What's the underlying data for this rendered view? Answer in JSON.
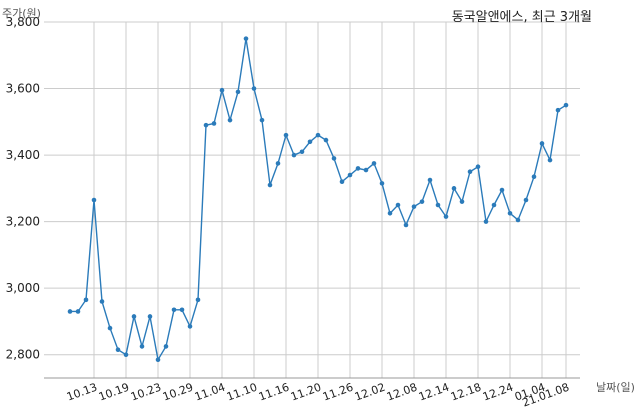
{
  "title": "동국알앤에스, 최근 3개월",
  "ylabel": "주가(원)",
  "xlabel": "날짜(일)",
  "chart_data": {
    "type": "line",
    "title": "동국알앤에스, 최근 3개월",
    "xlabel": "날짜(일)",
    "ylabel": "주가(원)",
    "ylim": [
      2730,
      3800
    ],
    "yticks": [
      2800,
      3000,
      3200,
      3400,
      3600,
      3800
    ],
    "ytick_labels": [
      "2,800",
      "3,000",
      "3,200",
      "3,400",
      "3,600",
      "3,800"
    ],
    "xtick_indices": [
      3,
      7,
      11,
      15,
      19,
      23,
      27,
      31,
      35,
      39,
      43,
      47,
      51,
      55,
      59,
      62
    ],
    "xtick_labels": [
      "10.13",
      "10.19",
      "10.23",
      "10.29",
      "11.04",
      "11.10",
      "11.16",
      "11.20",
      "11.26",
      "12.02",
      "12.08",
      "12.14",
      "12.18",
      "12.24",
      "01.04",
      "21.01.08"
    ],
    "grid": true,
    "color": "#2b7bba",
    "series": [
      {
        "values": [
          2930,
          2930,
          2965,
          3265,
          2960,
          2880,
          2815,
          2800,
          2915,
          2825,
          2915,
          2785,
          2825,
          2935,
          2935,
          2885,
          2965,
          3490,
          3495,
          3595,
          3505,
          3590,
          3750,
          3600,
          3505,
          3310,
          3375,
          3460,
          3400,
          3410,
          3440,
          3460,
          3445,
          3390,
          3320,
          3340,
          3360,
          3355,
          3375,
          3315,
          3225,
          3250,
          3190,
          3245,
          3260,
          3325,
          3250,
          3215,
          3300,
          3260,
          3350,
          3365,
          3200,
          3250,
          3295,
          3225,
          3205,
          3265,
          3335,
          3435,
          3385,
          3535,
          3550
        ]
      }
    ]
  }
}
